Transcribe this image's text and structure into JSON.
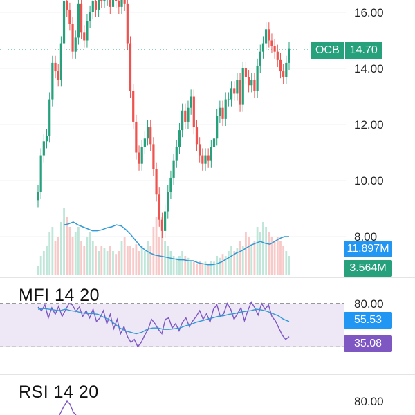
{
  "price_pane": {
    "y_ticks": [
      "16.00",
      "14.00",
      "12.00",
      "10.00",
      "8.00"
    ],
    "last_price": {
      "symbol": "OCB",
      "value": "14.70",
      "color": "#26a17c"
    }
  },
  "volume": {
    "ma_badge": {
      "value": "11.897M",
      "color": "#2196f3"
    },
    "vol_badge": {
      "value": "3.564M",
      "color": "#26a17c"
    }
  },
  "mfi_pane": {
    "title": "MFI 14 20",
    "y_ticks": [
      "80.00"
    ],
    "ma_badge": {
      "value": "55.53",
      "color": "#2196f3"
    },
    "mfi_badge": {
      "value": "35.08",
      "color": "#7e57c2"
    },
    "band_color": "#ede7f6"
  },
  "rsi_pane": {
    "title": "RSI 14 20",
    "y_ticks": [
      "80.00"
    ]
  },
  "colors": {
    "up": "#26a17c",
    "down": "#ef5350",
    "ma_line": "#2f9ad6",
    "mfi_line": "#7e57c2"
  },
  "chart_data": {
    "type": "line",
    "price_range": [
      7.5,
      16.5
    ],
    "mfi_range": [
      0,
      100
    ],
    "close": [
      9.6,
      10.9,
      11.4,
      11.6,
      12.9,
      14.2,
      13.9,
      13.6,
      14.9,
      16.4,
      16.1,
      15.6,
      14.6,
      15.1,
      16.3,
      15.3,
      15.0,
      15.7,
      16.0,
      16.4,
      16.1,
      16.6,
      16.4,
      16.5,
      16.6,
      16.2,
      16.5,
      16.4,
      16.2,
      16.6,
      16.3,
      14.9,
      13.2,
      12.1,
      11.0,
      10.6,
      11.2,
      11.5,
      11.9,
      11.3,
      10.4,
      9.5,
      8.6,
      8.2,
      8.9,
      9.6,
      10.1,
      10.7,
      11.2,
      11.8,
      12.5,
      12.1,
      12.6,
      13.0,
      11.9,
      11.3,
      10.9,
      10.6,
      10.9,
      10.7,
      11.2,
      11.5,
      12.3,
      12.6,
      12.2,
      12.9,
      12.9,
      13.3,
      13.1,
      13.6,
      12.7,
      14.0,
      13.7,
      13.4,
      13.6,
      13.2,
      14.1,
      14.6,
      14.9,
      15.4,
      15.0,
      14.8,
      14.6,
      14.3,
      13.9,
      13.7,
      14.2,
      14.7
    ],
    "volume": [
      0.1,
      0.2,
      0.25,
      0.3,
      0.45,
      0.5,
      0.35,
      0.4,
      0.55,
      0.7,
      0.6,
      0.5,
      0.4,
      0.45,
      0.5,
      0.35,
      0.3,
      0.4,
      0.45,
      0.35,
      0.3,
      0.25,
      0.3,
      0.28,
      0.25,
      0.3,
      0.25,
      0.22,
      0.25,
      0.35,
      0.4,
      0.3,
      0.3,
      0.28,
      0.32,
      0.25,
      0.3,
      0.25,
      0.35,
      0.3,
      0.5,
      0.6,
      0.4,
      0.6,
      0.35,
      0.3,
      0.25,
      0.2,
      0.18,
      0.2,
      0.25,
      0.2,
      0.18,
      0.15,
      0.14,
      0.12,
      0.15,
      0.12,
      0.14,
      0.12,
      0.15,
      0.14,
      0.2,
      0.18,
      0.22,
      0.2,
      0.25,
      0.3,
      0.25,
      0.28,
      0.35,
      0.3,
      0.45,
      0.4,
      0.3,
      0.35,
      0.5,
      0.45,
      0.55,
      0.5,
      0.45,
      0.4,
      0.35,
      0.4,
      0.35,
      0.3,
      0.25,
      0.2
    ],
    "volume_ma": [
      0.52,
      0.53,
      0.55,
      0.52,
      0.5,
      0.48,
      0.46,
      0.46,
      0.47,
      0.49,
      0.5,
      0.52,
      0.51,
      0.47,
      0.42,
      0.36,
      0.3,
      0.26,
      0.23,
      0.21,
      0.2,
      0.19,
      0.18,
      0.17,
      0.16,
      0.16,
      0.15,
      0.15,
      0.13,
      0.12,
      0.11,
      0.11,
      0.12,
      0.14,
      0.17,
      0.2,
      0.23,
      0.25,
      0.28,
      0.31,
      0.33,
      0.35,
      0.33,
      0.32,
      0.35,
      0.38,
      0.4,
      0.4
    ],
    "mfi": [
      75,
      70,
      78,
      60,
      74,
      65,
      76,
      62,
      71,
      80,
      78,
      69,
      75,
      62,
      70,
      60,
      72,
      55,
      60,
      70,
      52,
      65,
      45,
      58,
      38,
      48,
      34,
      26,
      30,
      20,
      26,
      36,
      44,
      58,
      52,
      44,
      38,
      58,
      60,
      46,
      52,
      42,
      54,
      60,
      48,
      56,
      62,
      70,
      58,
      66,
      54,
      72,
      78,
      62,
      66,
      80,
      72,
      58,
      66,
      74,
      56,
      70,
      82,
      74,
      64,
      80,
      72,
      78,
      62,
      56,
      46,
      36,
      30,
      34
    ],
    "mfi_ma": [
      72,
      73,
      72,
      71,
      70,
      72,
      70,
      69,
      67,
      66,
      66,
      65,
      61,
      58,
      52,
      46,
      42,
      40,
      38,
      40,
      44,
      46,
      46,
      44,
      44,
      45,
      46,
      49,
      51,
      54,
      56,
      58,
      60,
      62,
      63,
      65,
      66,
      68,
      69,
      70,
      72,
      71,
      69,
      66,
      63,
      58,
      55
    ]
  }
}
